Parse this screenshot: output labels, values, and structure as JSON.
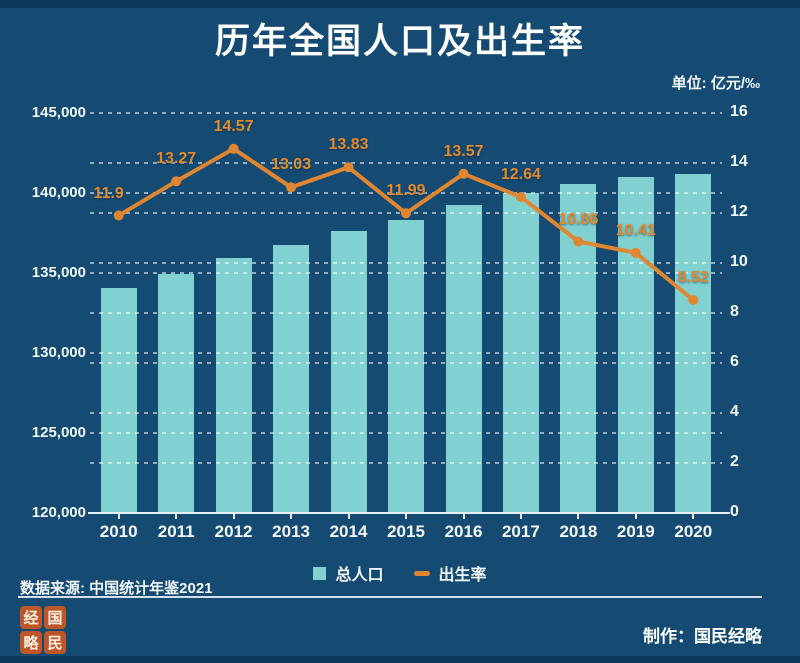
{
  "page": {
    "title": "历年全国人口及出生率",
    "unit_label": "单位: 亿元/‰",
    "source": "数据来源: 中国统计年鉴2021",
    "credit": "制作：国民经略",
    "seal_chars": [
      "经",
      "国",
      "略",
      "民"
    ]
  },
  "colors": {
    "background": "#154A72",
    "top_strip": "#0C3A5E",
    "bar_fill": "#81D1D1",
    "line_orange": "#E08631",
    "label_orange": "#E38A2C",
    "axis_text": "#F3F7FA",
    "gridline": "rgba(255,255,255,0.55)",
    "seal_red": "#BE5627"
  },
  "chart_data": {
    "type": "bar+line",
    "title": "历年全国人口及出生率",
    "unit": "单位: 亿元/‰",
    "categories": [
      "2010",
      "2011",
      "2012",
      "2013",
      "2014",
      "2015",
      "2016",
      "2017",
      "2018",
      "2019",
      "2020"
    ],
    "series": [
      {
        "name": "总人口",
        "type": "bar",
        "axis": "left",
        "color": "#81D1D1",
        "values": [
          134091,
          134916,
          135922,
          136726,
          137646,
          138326,
          139232,
          140011,
          140541,
          141008,
          141178
        ]
      },
      {
        "name": "出生率",
        "type": "line",
        "axis": "right",
        "color": "#E08631",
        "values": [
          11.9,
          13.27,
          14.57,
          13.03,
          13.83,
          11.99,
          13.57,
          12.64,
          10.86,
          10.41,
          8.52
        ],
        "point_labels": [
          "11.9",
          "13.27",
          "14.57",
          "13.03",
          "13.83",
          "11.99",
          "13.57",
          "12.64",
          "10.86",
          "10.41",
          "8.52"
        ]
      }
    ],
    "left_axis": {
      "min": 120000,
      "max": 145000,
      "step": 5000,
      "labels": [
        "145,000",
        "140,000",
        "135,000",
        "130,000",
        "125,000",
        "120,000"
      ]
    },
    "right_axis": {
      "min": 0,
      "max": 16,
      "step": 2,
      "labels": [
        "16",
        "14",
        "12",
        "10",
        "8",
        "6",
        "4",
        "2",
        "0"
      ]
    },
    "grid": "dashed horizontal lines at both left-axis and right-axis ticks",
    "legend": {
      "position": "bottom",
      "items": [
        "总人口",
        "出生率"
      ]
    }
  }
}
